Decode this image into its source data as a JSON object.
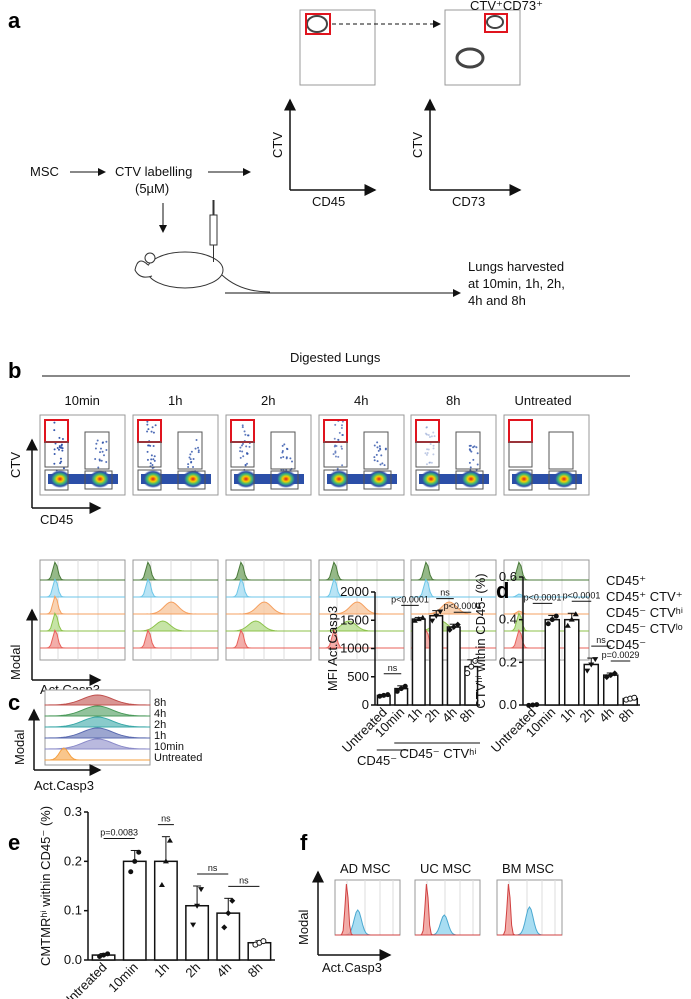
{
  "panels": {
    "a": "a",
    "b": "b",
    "c": "c",
    "d": "d",
    "e": "e",
    "f": "f"
  },
  "panel_a": {
    "msc": "MSC",
    "ctv_labelling": "CTV labelling",
    "conc": "(5µM)",
    "ctv": "CTV",
    "cd45": "CD45",
    "cd73": "CD73",
    "gate_title": "CTV⁺CD73⁺",
    "gate_title2": "MSC",
    "harvest": [
      "Lungs harvested",
      "at 10min, 1h, 2h,",
      "4h and 8h"
    ]
  },
  "panel_b": {
    "title": "Digested Lungs",
    "timepoints": [
      "10min",
      "1h",
      "2h",
      "4h",
      "8h",
      "Untreated"
    ],
    "y_axis": "CTV",
    "x_axis": "CD45",
    "hist_y": "Modal",
    "hist_x": "Act.Casp3",
    "legend": [
      {
        "label": "CD45⁺",
        "color": "#4a7a3a"
      },
      {
        "label": "CD45⁺ CTV⁺",
        "color": "#6cc6e8"
      },
      {
        "label": "CD45⁻ CTVʰⁱ",
        "color": "#e0141e"
      },
      {
        "label": "CD45⁻ CTVˡᵒ",
        "color": "#111111"
      },
      {
        "label": "CD45⁻",
        "color": "#111111"
      }
    ]
  },
  "panel_c_hist": {
    "labels": [
      "8h",
      "4h",
      "2h",
      "1h",
      "10min",
      "Untreated"
    ],
    "y_axis": "Modal",
    "x_axis": "Act.Casp3"
  },
  "panel_f": {
    "titles": [
      "AD MSC",
      "UC MSC",
      "BM MSC"
    ],
    "y_axis": "Modal",
    "x_axis": "Act.Casp3"
  },
  "chart_data": [
    {
      "id": "c",
      "type": "bar",
      "ylabel": "MFI Act.Casp3",
      "categories": [
        "Untreated",
        "10min",
        "1h",
        "2h",
        "4h",
        "8h"
      ],
      "values": [
        170,
        290,
        1520,
        1580,
        1380,
        680
      ],
      "errors": [
        15,
        50,
        30,
        90,
        50,
        120
      ],
      "ylim": [
        0,
        2000
      ],
      "yticks": [
        "0",
        "500",
        "1000",
        "1500",
        "2000"
      ],
      "ytick_values": [
        0,
        500,
        1000,
        1500,
        2000
      ],
      "group_labels": [
        "CD45⁻",
        "CD45⁻ CTVʰⁱ"
      ],
      "stats": [
        {
          "from": 0,
          "to": 1,
          "label": "ns"
        },
        {
          "from": 1,
          "to": 2,
          "label": "p<0.0001"
        },
        {
          "from": 3,
          "to": 4,
          "label": "ns"
        },
        {
          "from": 4,
          "to": 5,
          "label": "p<0.0001"
        }
      ]
    },
    {
      "id": "d",
      "type": "bar",
      "ylabel": "CTVʰⁱ within CD45- (%)",
      "categories": [
        "Untreated",
        "10min",
        "1h",
        "2h",
        "4h",
        "8h"
      ],
      "values": [
        0.0,
        0.4,
        0.4,
        0.19,
        0.14,
        0.03
      ],
      "errors": [
        0.002,
        0.02,
        0.03,
        0.03,
        0.01,
        0.005
      ],
      "ylim": [
        0,
        0.6
      ],
      "yticks": [
        "0.0",
        "0.2",
        "0.4",
        "0.6"
      ],
      "ytick_values": [
        0,
        0.2,
        0.4,
        0.6
      ],
      "stats": [
        {
          "from": 0,
          "to": 1,
          "label": "p<0.0001"
        },
        {
          "from": 2,
          "to": 3,
          "label": "p<0.0001"
        },
        {
          "from": 3,
          "to": 4,
          "label": "ns"
        },
        {
          "from": 4,
          "to": 5,
          "label": "p=0.0029"
        }
      ]
    },
    {
      "id": "e",
      "type": "bar",
      "ylabel": "CMTMRʰⁱ within CD45⁻ (%)",
      "categories": [
        "Untreated",
        "10min",
        "1h",
        "2h",
        "4h",
        "8h"
      ],
      "values": [
        0.01,
        0.2,
        0.2,
        0.11,
        0.095,
        0.035
      ],
      "errors": [
        0.003,
        0.022,
        0.05,
        0.04,
        0.03,
        0.004
      ],
      "ylim": [
        0,
        0.3
      ],
      "yticks": [
        "0.0",
        "0.1",
        "0.2",
        "0.3"
      ],
      "ytick_values": [
        0,
        0.1,
        0.2,
        0.3
      ],
      "stats": [
        {
          "from": 0,
          "to": 1,
          "label": "p=0.0083"
        },
        {
          "from": 2,
          "to": 2,
          "label": "ns"
        },
        {
          "from": 3,
          "to": 4,
          "label": "ns"
        },
        {
          "from": 4,
          "to": 5,
          "label": "ns"
        }
      ]
    }
  ]
}
